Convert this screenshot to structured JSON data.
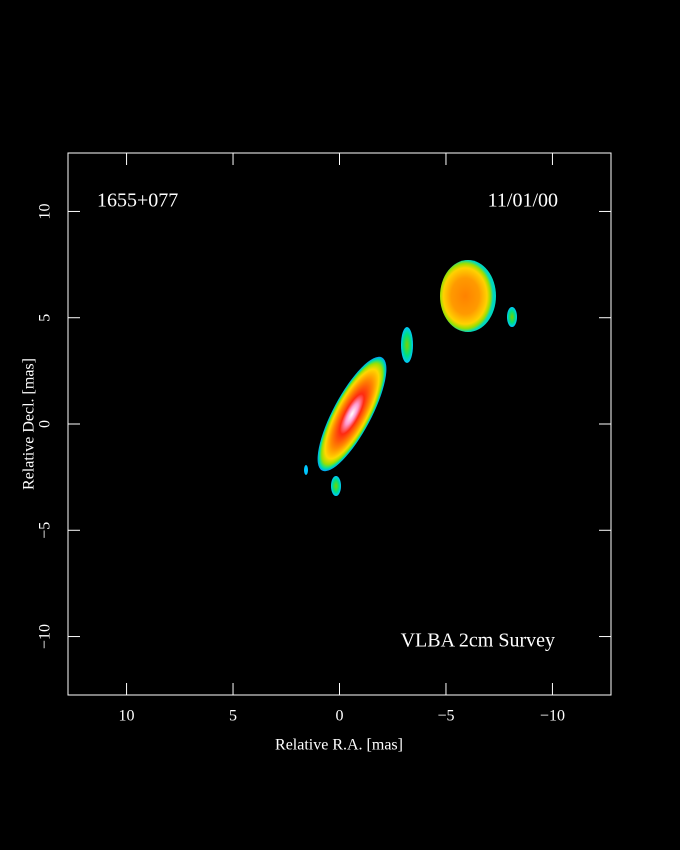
{
  "chart_data": {
    "type": "image",
    "source": "1655+077",
    "date": "11/01/00",
    "survey": "VLBA 2cm Survey",
    "x_label": "Relative R.A. [mas]",
    "y_label": "Relative Decl. [mas]",
    "xlim": [
      12.75,
      -12.75
    ],
    "ylim": [
      -12.75,
      12.75
    ],
    "xticks": [
      10,
      5,
      0,
      {
        "value": -5,
        "label": "−5"
      },
      {
        "value": -10,
        "label": "−10"
      }
    ],
    "yticks": [
      {
        "value": -10,
        "label": "−10"
      },
      {
        "value": -5,
        "label": "−5"
      },
      0,
      5,
      10
    ]
  }
}
